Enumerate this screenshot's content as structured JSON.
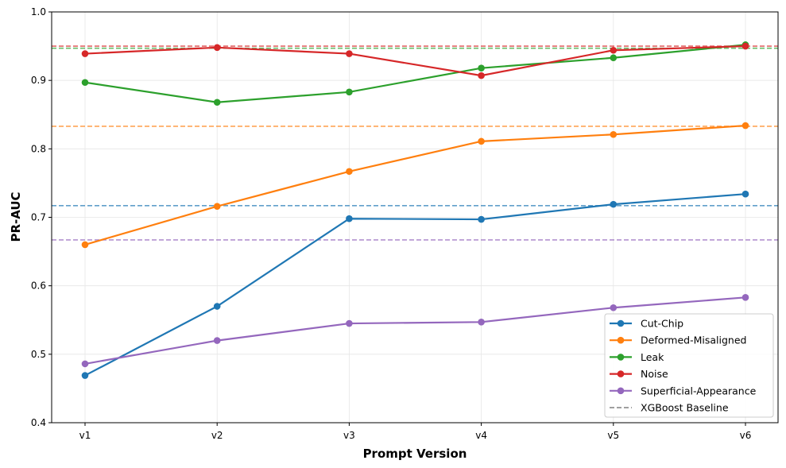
{
  "chart_data": {
    "type": "line",
    "title": "",
    "xlabel": "Prompt Version",
    "ylabel": "PR-AUC",
    "categories": [
      "v1",
      "v2",
      "v3",
      "v4",
      "v5",
      "v6"
    ],
    "ylim": [
      0.4,
      1.0
    ],
    "yticks": [
      "0.4",
      "0.5",
      "0.6",
      "0.7",
      "0.8",
      "0.9",
      "1.0"
    ],
    "grid": true,
    "legend_position": "lower-right",
    "series": [
      {
        "name": "Cut-Chip",
        "color": "#1f77b4",
        "values": [
          0.469,
          0.57,
          0.698,
          0.697,
          0.719,
          0.734
        ],
        "baseline": 0.717
      },
      {
        "name": "Deformed-Misaligned",
        "color": "#ff7f0e",
        "values": [
          0.66,
          0.716,
          0.767,
          0.811,
          0.821,
          0.834
        ],
        "baseline": 0.833
      },
      {
        "name": "Leak",
        "color": "#2ca02c",
        "values": [
          0.897,
          0.868,
          0.883,
          0.918,
          0.933,
          0.952
        ],
        "baseline": 0.947
      },
      {
        "name": "Noise",
        "color": "#d62728",
        "values": [
          0.939,
          0.948,
          0.939,
          0.907,
          0.944,
          0.95
        ],
        "baseline": 0.95
      },
      {
        "name": "Superficial-Appearance",
        "color": "#9467bd",
        "values": [
          0.486,
          0.52,
          0.545,
          0.547,
          0.568,
          0.583
        ],
        "baseline": 0.667
      }
    ],
    "baseline_legend": {
      "name": "XGBoost Baseline",
      "color": "#808080"
    }
  }
}
